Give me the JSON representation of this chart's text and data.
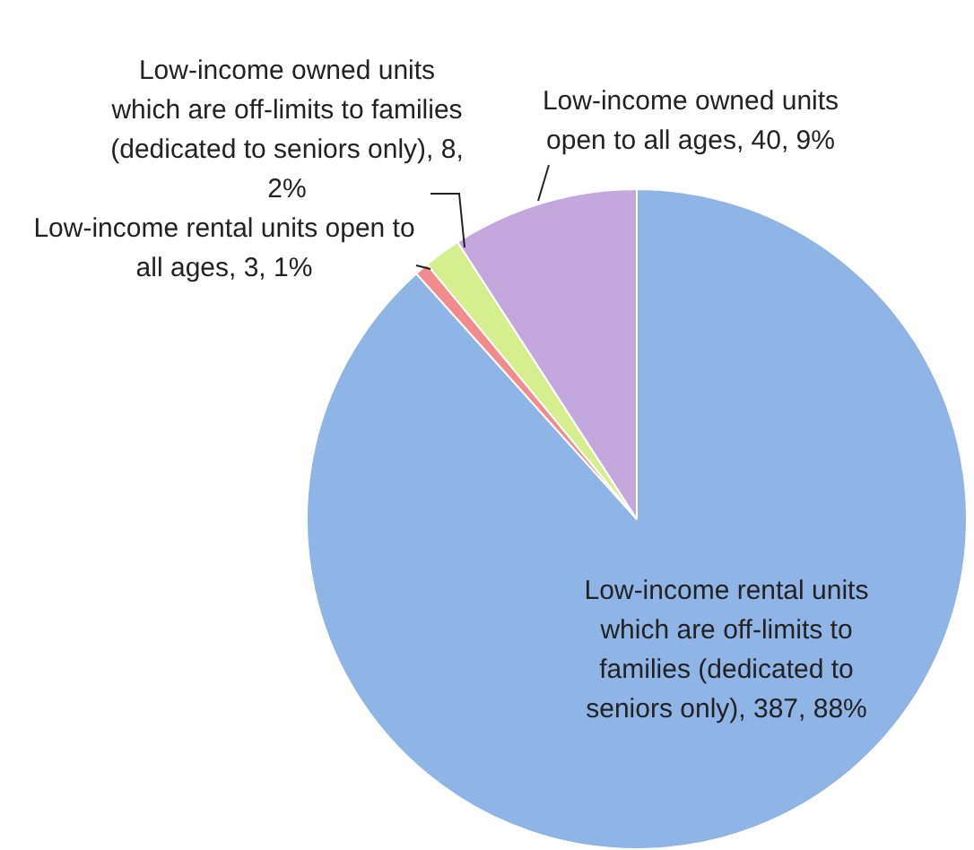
{
  "chart_data": {
    "type": "pie",
    "categories": [
      "Low-income rental units which are off-limits to families (dedicated to seniors only)",
      "Low-income rental units open to all ages",
      "Low-income owned units which are off-limits to families (dedicated to seniors only)",
      "Low-income owned units open to all ages"
    ],
    "values": [
      387,
      3,
      8,
      40
    ],
    "colors": [
      "#8fb4e6",
      "#f28b8b",
      "#d5ee8e",
      "#c3a8de"
    ],
    "value_labels": [
      "387, 88%",
      "3, 1%",
      "8, 2%",
      "40, 9%"
    ],
    "legend": false
  }
}
